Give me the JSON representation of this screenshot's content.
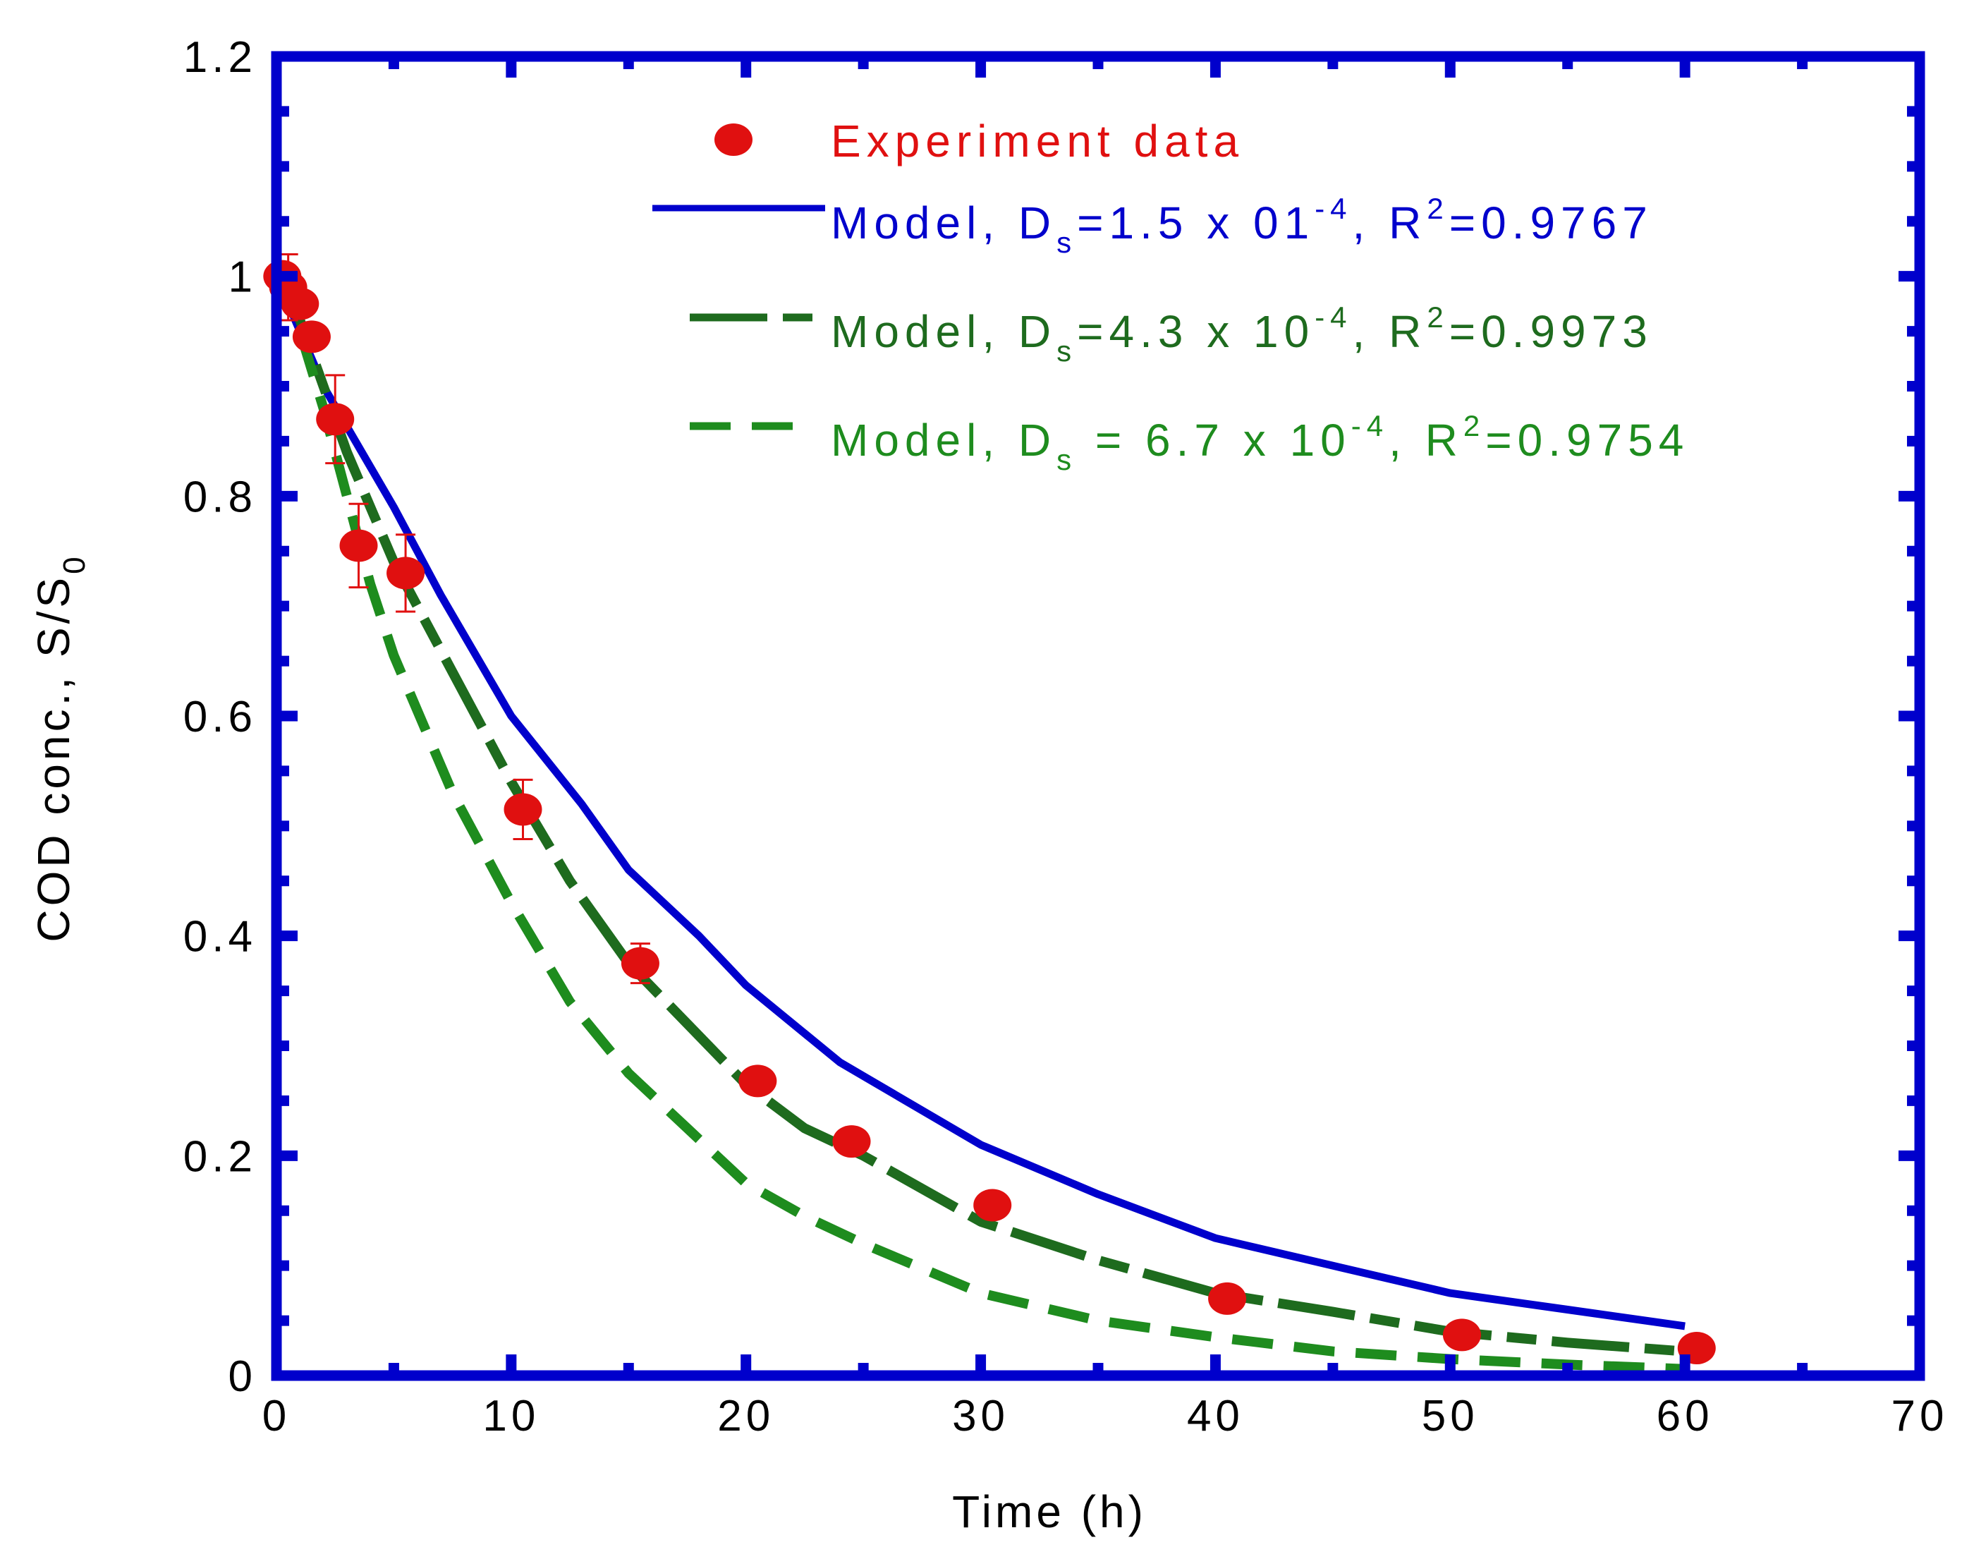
{
  "chart_data": {
    "type": "line",
    "title": "",
    "xlabel": "Time (h)",
    "ylabel": "COD conc., S/S",
    "ylabel_sub": "0",
    "xlim": [
      0,
      70
    ],
    "ylim": [
      0,
      1.2
    ],
    "xticks": [
      0,
      10,
      20,
      30,
      40,
      50,
      60,
      70
    ],
    "yticks": [
      0,
      0.2,
      0.4,
      0.6,
      0.8,
      1,
      1.2
    ],
    "xtick_labels": [
      "0",
      "10",
      "20",
      "30",
      "40",
      "50",
      "60",
      "70"
    ],
    "ytick_labels": [
      "0",
      "0.2",
      "0.4",
      "0.6",
      "0.8",
      "1",
      "1.2"
    ],
    "grid": false,
    "legend_position": "top-right",
    "colors": {
      "frame": "#0000cc",
      "experiment": "#e01010",
      "model_1": "#0000cc",
      "model_2": "#1e6b1e",
      "model_3": "#1e8c1e"
    },
    "experiment": {
      "name": "Experiment data",
      "x": [
        0.25,
        0.5,
        1,
        1.5,
        2.5,
        3.5,
        5.5,
        10.5,
        15.5,
        20.5,
        24.5,
        30.5,
        40.5,
        50.5,
        60.5
      ],
      "y": [
        1.0,
        0.99,
        0.975,
        0.945,
        0.87,
        0.755,
        0.73,
        0.515,
        0.375,
        0.268,
        0.213,
        0.155,
        0.07,
        0.037,
        0.025
      ],
      "error": [
        0.0,
        0.03,
        0.0,
        0.0,
        0.04,
        0.038,
        0.035,
        0.027,
        0.018,
        0.0,
        0.0,
        0.0,
        0.0,
        0.0,
        0.0
      ]
    },
    "series": [
      {
        "name": "Model, D",
        "sub": "s",
        "equation": "=1.5 x 01",
        "exponent": "-4",
        "r_label": ", R",
        "r_exponent": "2",
        "r_value": "=0.9767",
        "style": "solid",
        "x": [
          0,
          2,
          5,
          7,
          10,
          13,
          15,
          18,
          20,
          24,
          30,
          35,
          40,
          45,
          50,
          55,
          60
        ],
        "y": [
          1.0,
          0.9,
          0.79,
          0.71,
          0.6,
          0.52,
          0.46,
          0.4,
          0.355,
          0.285,
          0.21,
          0.165,
          0.125,
          0.1,
          0.075,
          0.06,
          0.045
        ]
      },
      {
        "name": "Model, D",
        "sub": "s",
        "equation": "=4.3 x 10",
        "exponent": "-4",
        "r_label": ", R",
        "r_exponent": "2",
        "r_value": "=0.9973",
        "style": "dashdot",
        "x": [
          0.5,
          1,
          2,
          3,
          5,
          7.5,
          10,
          12.5,
          15,
          17.5,
          20,
          22.5,
          25,
          30,
          35,
          40,
          45,
          50,
          55,
          60
        ],
        "y": [
          1.0,
          0.96,
          0.9,
          0.84,
          0.74,
          0.64,
          0.54,
          0.45,
          0.375,
          0.32,
          0.265,
          0.225,
          0.2,
          0.14,
          0.105,
          0.075,
          0.058,
          0.04,
          0.03,
          0.022
        ]
      },
      {
        "name": "Model, D",
        "sub": "s",
        "equation": " = 6.7 x 10",
        "exponent": "-4",
        "r_label": ", R",
        "r_exponent": "2",
        "r_value": "=0.9754",
        "style": "dashed",
        "x": [
          0.5,
          1,
          2,
          3,
          4,
          5,
          7.5,
          10,
          12.5,
          15,
          17.5,
          20,
          22.5,
          25,
          30,
          35,
          40,
          45,
          50,
          55,
          60
        ],
        "y": [
          1.0,
          0.95,
          0.88,
          0.8,
          0.72,
          0.655,
          0.53,
          0.43,
          0.34,
          0.275,
          0.225,
          0.175,
          0.145,
          0.12,
          0.075,
          0.05,
          0.035,
          0.022,
          0.015,
          0.01,
          0.006
        ]
      }
    ]
  }
}
